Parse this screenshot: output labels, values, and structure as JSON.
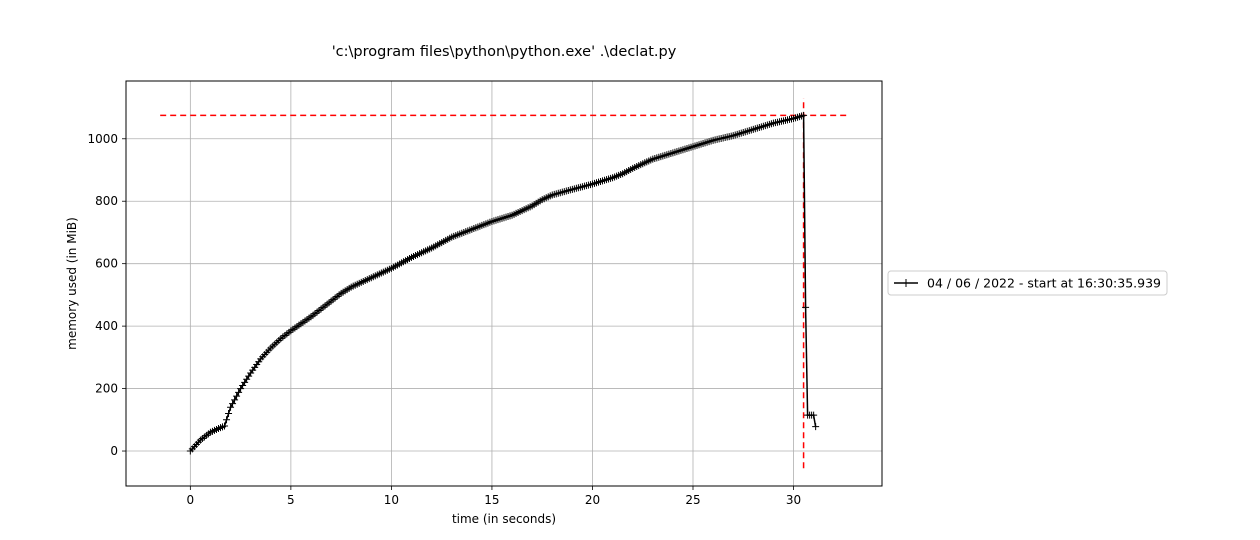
{
  "chart_data": {
    "type": "line",
    "title": "'c:\\program files\\python\\python.exe' .\\declat.py",
    "xlabel": "time (in seconds)",
    "ylabel": "memory used (in MiB)",
    "xlim": [
      -3.2,
      34.4
    ],
    "ylim": [
      -112,
      1185
    ],
    "xticks": [
      0,
      5,
      10,
      15,
      20,
      25,
      30
    ],
    "yticks": [
      0,
      200,
      400,
      600,
      800,
      1000
    ],
    "grid": true,
    "legend_position": "outside-right",
    "series": [
      {
        "name": "04 / 06 / 2022 - start at 16:30:35.939",
        "color": "#000000",
        "marker": "+",
        "x": [
          0,
          0.5,
          1.0,
          1.5,
          1.7,
          2.0,
          2.5,
          3.0,
          3.5,
          4.0,
          4.5,
          5.0,
          6.0,
          7.0,
          7.5,
          8.0,
          9.0,
          10.0,
          11.0,
          12.0,
          13.0,
          14.0,
          15.0,
          16.0,
          17.0,
          17.5,
          18.0,
          19.0,
          20.0,
          21.0,
          21.5,
          22.0,
          23.0,
          24.0,
          25.0,
          26.0,
          27.0,
          28.0,
          29.0,
          30.0,
          30.5,
          30.6,
          30.7,
          30.8,
          31.0,
          31.1
        ],
        "y": [
          0,
          35,
          60,
          75,
          80,
          140,
          200,
          250,
          295,
          330,
          360,
          385,
          430,
          480,
          505,
          525,
          555,
          585,
          620,
          650,
          685,
          710,
          735,
          755,
          785,
          805,
          820,
          838,
          855,
          875,
          888,
          905,
          935,
          955,
          975,
          995,
          1010,
          1030,
          1050,
          1065,
          1075,
          460,
          115,
          115,
          115,
          78
        ]
      }
    ],
    "reference_lines": [
      {
        "orientation": "horizontal",
        "y": 1075,
        "x_from": -1.5,
        "x_to": 32.7,
        "color": "#ff0000",
        "style": "dashed"
      },
      {
        "orientation": "vertical",
        "x": 30.5,
        "y_from": -55,
        "y_to": 1130,
        "color": "#ff0000",
        "style": "dashed"
      }
    ]
  }
}
